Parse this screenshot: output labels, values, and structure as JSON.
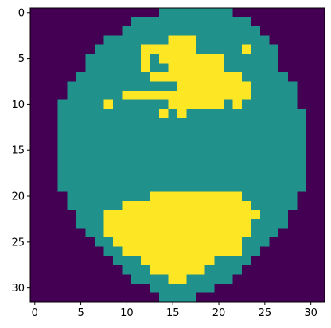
{
  "chart_data": {
    "type": "heatmap",
    "title": "",
    "xlabel": "",
    "ylabel": "",
    "colormap": "viridis",
    "xlim": [
      -0.5,
      31.5
    ],
    "ylim": [
      31.5,
      -0.5
    ],
    "legend": "none",
    "grid": false,
    "x_ticks": [
      0,
      5,
      10,
      15,
      20,
      25,
      30
    ],
    "y_ticks": [
      0,
      5,
      10,
      15,
      20,
      25,
      30
    ],
    "x_tick_labels": [
      "0",
      "5",
      "10",
      "15",
      "20",
      "25",
      "30"
    ],
    "y_tick_labels": [
      "0",
      "5",
      "10",
      "15",
      "20",
      "25",
      "30"
    ],
    "value_colors": {
      "0": "#440154",
      "1": "#21918c",
      "2": "#fde725"
    },
    "grid_values": [
      "00000000000000111111110000000000",
      "00000000000111111111111100000000",
      "00000000001111111111111110000000",
      "00000000111111122211111111000000",
      "00000001111122222211111211100000",
      "00000011111121222222211111100000",
      "00000011111121122222211111100000",
      "00000111111112222222222111110000",
      "00001111111111112222222211111000",
      "00001111112222222222222211111000",
      "00011111211111122222212111111000",
      "00011111111111212111111111111100",
      "00011111111111111111111111111100",
      "00011111111111111111111111111100",
      "00011111111111111111111111111100",
      "00011111111111111111111111111100",
      "00011111111111111111111111111100",
      "00011111111111111111111111111100",
      "00011111111111111111111111111100",
      "00011111111111111111111111111100",
      "00001111111112222222222111111000",
      "00001111112222222222222211111000",
      "00000111222222222222222221110000",
      "00000111222222222222222211110000",
      "00000011222222222222222211100000",
      "00000001122222222222222111000000",
      "00000000112222222222222110000000",
      "00000000011122222222111100000000",
      "00000000001112222221111000000000",
      "00000000000111122111110000000000",
      "00000000000001111111000000000000",
      "00000000000000111100000000000000"
    ]
  }
}
